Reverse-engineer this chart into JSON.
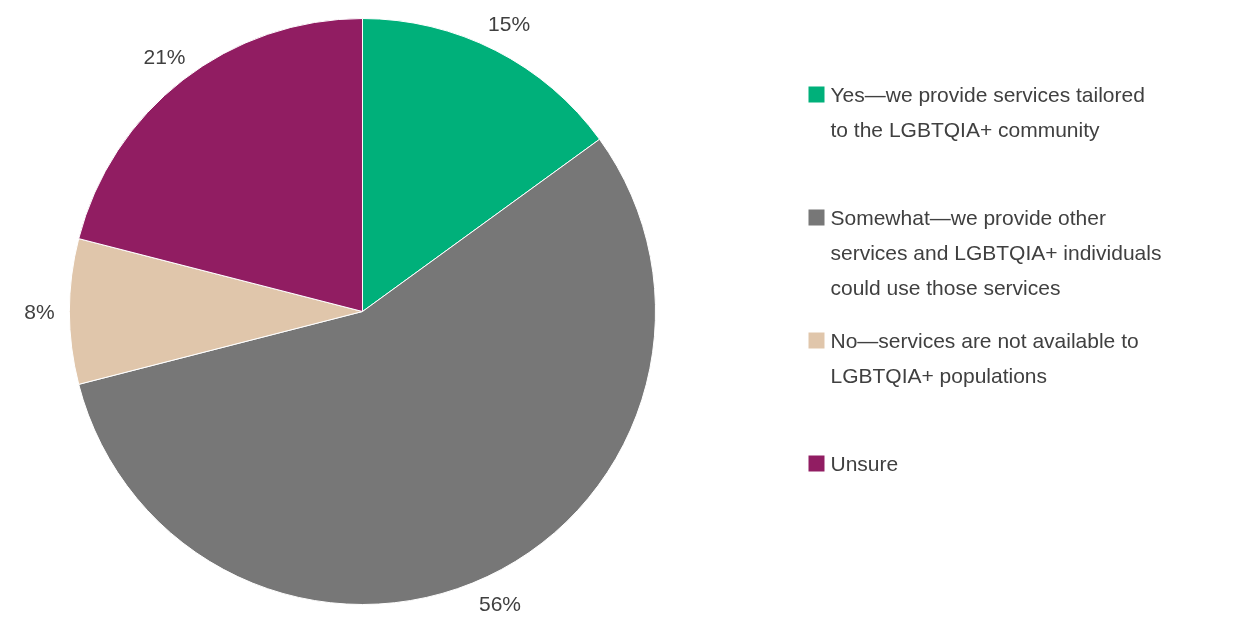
{
  "chart_data": {
    "type": "pie",
    "categories": [
      "Yes—we provide services tailored to the LGBTQIA+ community",
      "Somewhat—we provide other services and LGBTQIA+ individuals could use those services",
      "No—services are not available to LGBTQIA+ populations",
      "Unsure"
    ],
    "values": [
      15,
      56,
      8,
      21
    ],
    "colors": [
      "#00b07a",
      "#777777",
      "#e0c6ab",
      "#911d62"
    ],
    "value_labels": [
      "15%",
      "56%",
      "8%",
      "21%"
    ],
    "legend": "right"
  }
}
